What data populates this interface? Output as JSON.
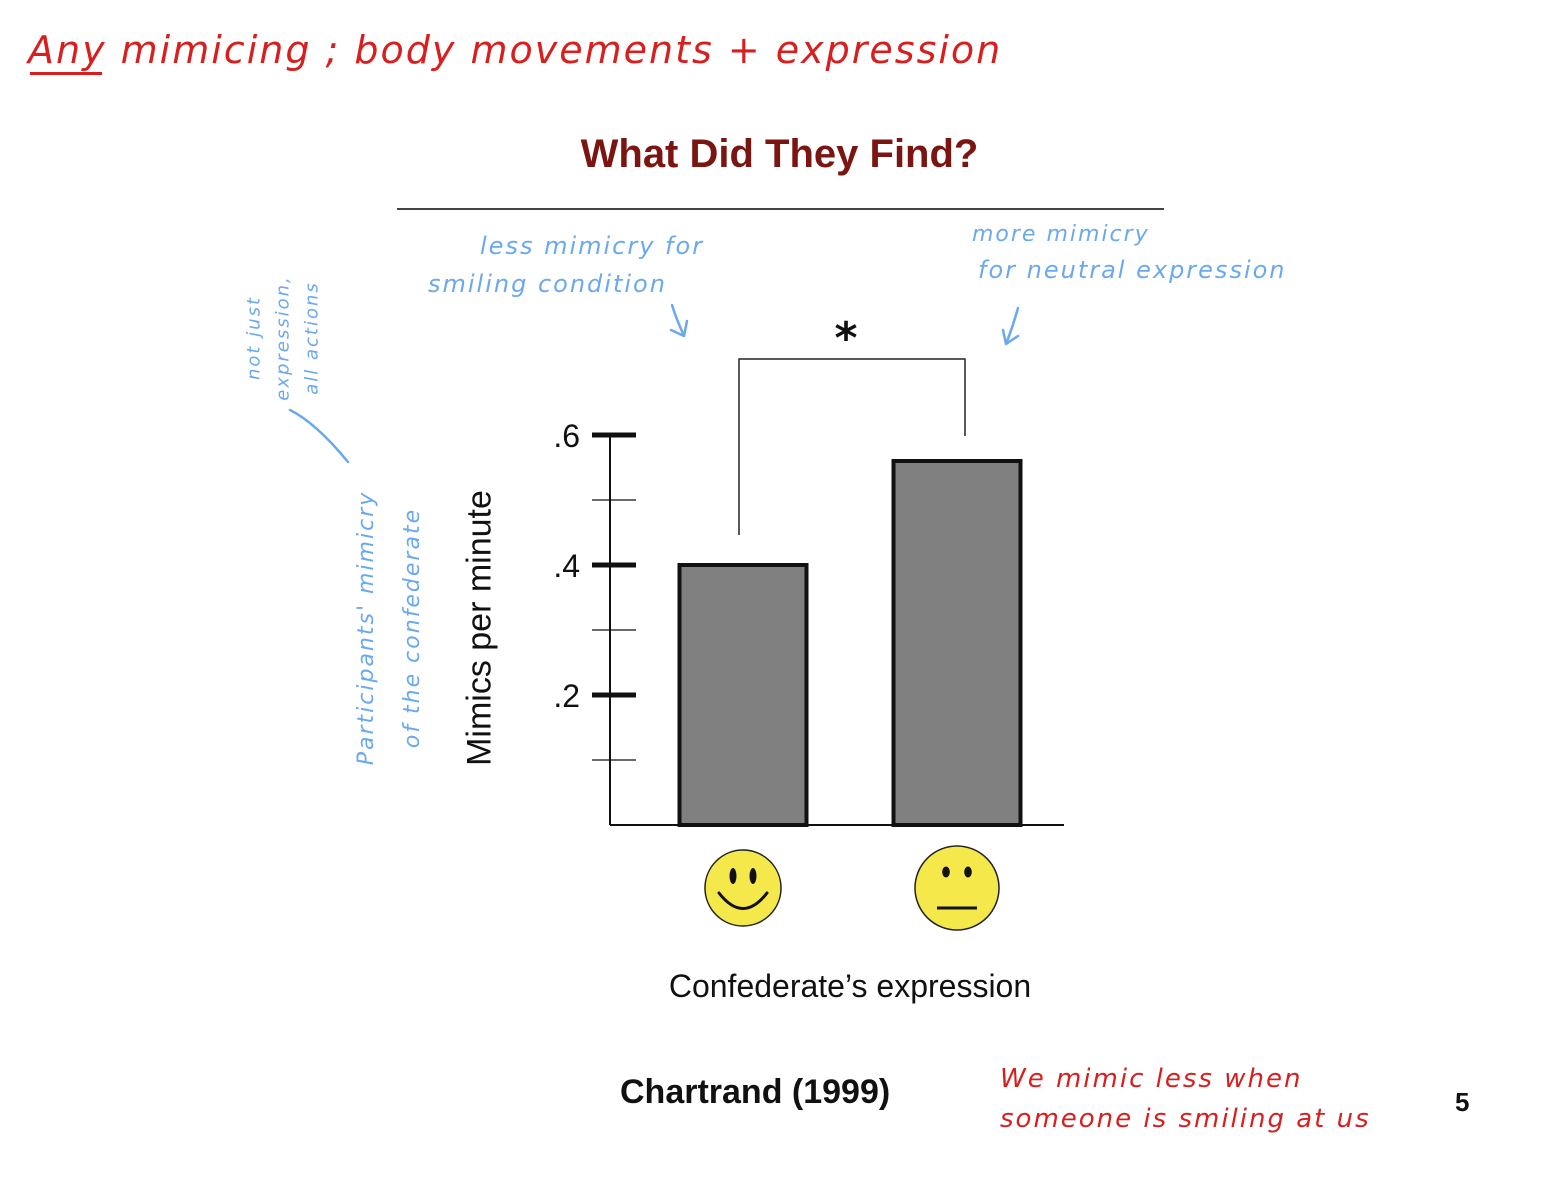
{
  "notes": {
    "top": "Any mimicing ; body movements + expression",
    "bottom_line1": "We mimic less when",
    "bottom_line2": "someone is smiling at us",
    "left_bar_line1": "less mimicry for",
    "left_bar_line2": "smiling condition",
    "right_bar_line1": "more mimicry",
    "right_bar_line2": "for neutral expression",
    "margin_side_line1": "not just",
    "margin_side_line2": "expression,",
    "margin_side_line3": "all actions",
    "ylabel_gloss_line1": "Participants' mimicry",
    "ylabel_gloss_line2": "of the confederate"
  },
  "slide": {
    "title": "What Did They Find?",
    "citation": "Chartrand (1999)",
    "page_number": "5"
  },
  "chart_data": {
    "type": "bar",
    "categories": [
      "smiling",
      "neutral"
    ],
    "category_icons": [
      "smiley-face-icon",
      "neutral-face-icon"
    ],
    "values": [
      0.4,
      0.56
    ],
    "ylabel": "Mimics per minute",
    "xlabel": "Confederate’s expression",
    "ylim": [
      0,
      0.6
    ],
    "ytick_values": [
      0.2,
      0.4,
      0.6
    ],
    "ytick_labels": [
      ".2",
      ".4",
      ".6"
    ],
    "minor_ticks": [
      0.1,
      0.3,
      0.5
    ],
    "significance_marker": "*",
    "grid": false,
    "colors": {
      "bar": "#808080",
      "bar_edge": "#111111",
      "face": "#f5e84a"
    }
  }
}
